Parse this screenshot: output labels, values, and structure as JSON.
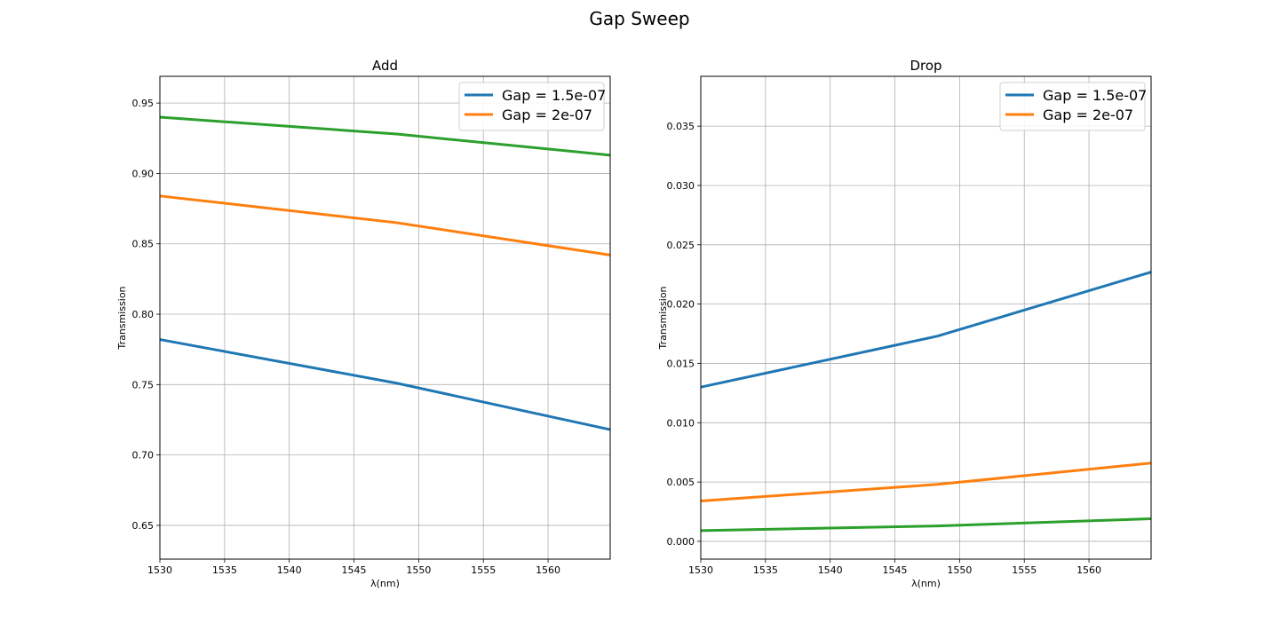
{
  "figure": {
    "title": "Gap Sweep"
  },
  "chart_data": [
    {
      "type": "line",
      "title": "Add",
      "xlabel": "λ(nm)",
      "ylabel": "Transmission",
      "xlim": [
        1530,
        1564.8
      ],
      "ylim": [
        0.626,
        0.969
      ],
      "xticks": [
        1530,
        1535,
        1540,
        1545,
        1550,
        1555,
        1560
      ],
      "yticks": [
        0.65,
        0.7,
        0.75,
        0.8,
        0.85,
        0.9,
        0.95
      ],
      "xtick_labels": [
        "1530",
        "1535",
        "1540",
        "1545",
        "1550",
        "1555",
        "1560"
      ],
      "ytick_labels": [
        "0.65",
        "0.70",
        "0.75",
        "0.80",
        "0.85",
        "0.90",
        "0.95"
      ],
      "grid": true,
      "legend": "top-right",
      "series": [
        {
          "name": "Gap = 1.5e-07",
          "color": "#1f77b4",
          "x": [
            1530,
            1548.3,
            1564.8
          ],
          "y": [
            0.782,
            0.751,
            0.718
          ],
          "in_legend": true
        },
        {
          "name": "Gap = 2e-07",
          "color": "#ff7f0e",
          "x": [
            1530,
            1548.3,
            1564.8
          ],
          "y": [
            0.884,
            0.865,
            0.842
          ],
          "in_legend": true
        },
        {
          "name": "",
          "color": "#2ca02c",
          "x": [
            1530,
            1548.3,
            1564.8
          ],
          "y": [
            0.94,
            0.928,
            0.913
          ],
          "in_legend": false
        }
      ]
    },
    {
      "type": "line",
      "title": "Drop",
      "xlabel": "λ(nm)",
      "ylabel": "Transmission",
      "xlim": [
        1530,
        1564.8
      ],
      "ylim": [
        -0.0015,
        0.0392
      ],
      "xticks": [
        1530,
        1535,
        1540,
        1545,
        1550,
        1555,
        1560
      ],
      "yticks": [
        0.0,
        0.005,
        0.01,
        0.015,
        0.02,
        0.025,
        0.03,
        0.035
      ],
      "xtick_labels": [
        "1530",
        "1535",
        "1540",
        "1545",
        "1550",
        "1555",
        "1560"
      ],
      "ytick_labels": [
        "0.000",
        "0.005",
        "0.010",
        "0.015",
        "0.020",
        "0.025",
        "0.030",
        "0.035"
      ],
      "grid": true,
      "legend": "top-right",
      "series": [
        {
          "name": "Gap = 1.5e-07",
          "color": "#1f77b4",
          "x": [
            1530,
            1548.3,
            1564.8
          ],
          "y": [
            0.013,
            0.0173,
            0.0227
          ],
          "in_legend": true
        },
        {
          "name": "Gap = 2e-07",
          "color": "#ff7f0e",
          "x": [
            1530,
            1548.3,
            1564.8
          ],
          "y": [
            0.0034,
            0.0048,
            0.0066
          ],
          "in_legend": true
        },
        {
          "name": "",
          "color": "#2ca02c",
          "x": [
            1530,
            1548.3,
            1564.8
          ],
          "y": [
            0.0009,
            0.0013,
            0.0019
          ],
          "in_legend": false
        }
      ]
    }
  ]
}
